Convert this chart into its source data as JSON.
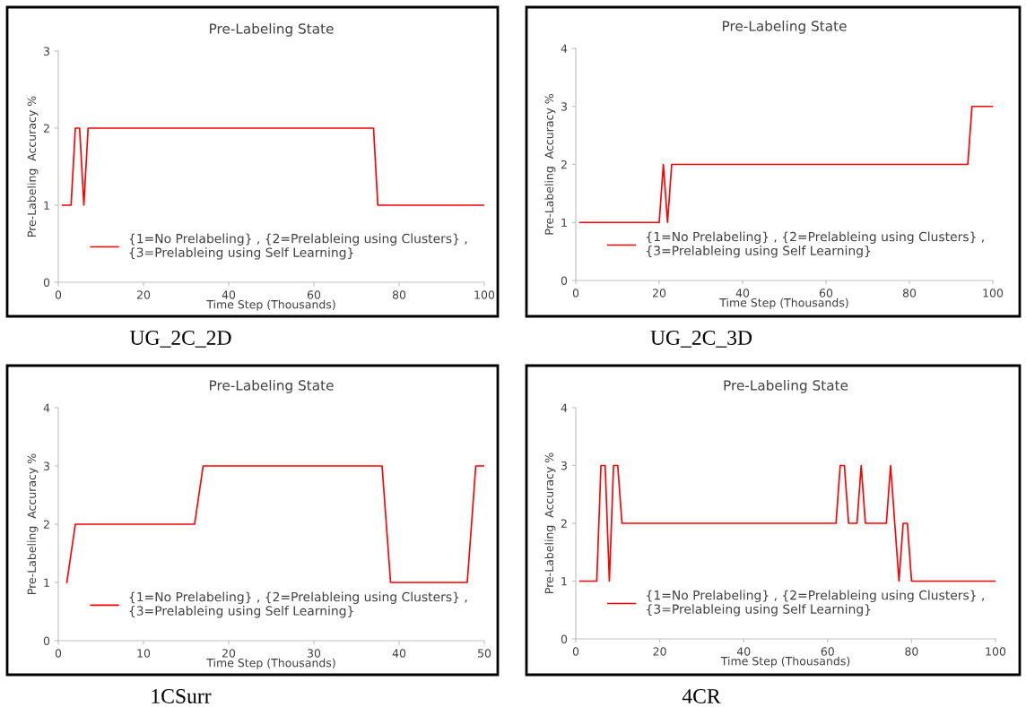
{
  "chart_data": [
    {
      "type": "line",
      "title": "Pre-Labeling State",
      "xlabel": "Time Step (Thousands)",
      "ylabel": "Pre-Labeling  Accuracy %",
      "annotations": [
        "UG_2C_2D"
      ],
      "xlim": [
        0,
        100
      ],
      "xticks": [
        0,
        20,
        40,
        60,
        80,
        100
      ],
      "ylim": [
        0,
        3
      ],
      "yticks": [
        0,
        1,
        2,
        3
      ],
      "grid": false,
      "legend": "bottom left",
      "marker": "none",
      "line_style": "solid",
      "series": [
        {
          "name": "{1=No Prelabeling} , {2=Prelableing using Clusters} ,\n{3=Prelableing using Self Learning}",
          "color": "#ff0000",
          "x": [
            1,
            3,
            4,
            5,
            6,
            7,
            74,
            75,
            100
          ],
          "values": [
            1,
            1,
            2,
            2,
            1,
            2,
            2,
            1,
            1
          ]
        }
      ]
    },
    {
      "type": "line",
      "title": "Pre-Labeling State",
      "xlabel": "Time Step (Thousands)",
      "ylabel": "Pre-Labeling  Accuracy %",
      "annotations": [
        "UG_2C_3D"
      ],
      "xlim": [
        0,
        100
      ],
      "xticks": [
        0,
        20,
        40,
        60,
        80,
        100
      ],
      "ylim": [
        0,
        4
      ],
      "yticks": [
        0,
        1,
        2,
        3,
        4
      ],
      "grid": false,
      "legend": "bottom left",
      "marker": "none",
      "line_style": "solid",
      "series": [
        {
          "name": "{1=No Prelabeling} , {2=Prelableing using Clusters} ,\n{3=Prelableing using Self Learning}",
          "color": "#ff0000",
          "x": [
            1,
            20,
            21,
            22,
            23,
            94,
            95,
            100
          ],
          "values": [
            1,
            1,
            2,
            1,
            2,
            2,
            3,
            3
          ]
        }
      ]
    },
    {
      "type": "line",
      "title": "Pre-Labeling State",
      "xlabel": "Time Step (Thousands)",
      "ylabel": "Pre-Labeling  Accuracy %",
      "annotations": [
        "1CSurr"
      ],
      "xlim": [
        0,
        50
      ],
      "xticks": [
        0,
        10,
        20,
        30,
        40,
        50
      ],
      "ylim": [
        0,
        4
      ],
      "yticks": [
        0,
        1,
        2,
        3,
        4
      ],
      "grid": false,
      "legend": "bottom left",
      "marker": "none",
      "line_style": "solid",
      "series": [
        {
          "name": "{1=No Prelabeling} , {2=Prelableing using Clusters} ,\n{3=Prelableing using Self Learning}",
          "color": "#ff0000",
          "x": [
            1,
            2,
            16,
            17,
            38,
            39,
            48,
            49,
            50
          ],
          "values": [
            1,
            2,
            2,
            3,
            3,
            1,
            1,
            3,
            3
          ]
        }
      ]
    },
    {
      "type": "line",
      "title": "Pre-Labeling State",
      "xlabel": "Time Step (Thousands)",
      "ylabel": "Pre-Labeling  Accuracy %",
      "annotations": [
        "4CR"
      ],
      "xlim": [
        0,
        100
      ],
      "xticks": [
        0,
        20,
        40,
        60,
        80,
        100
      ],
      "ylim": [
        0,
        4
      ],
      "yticks": [
        0,
        1,
        2,
        3,
        4
      ],
      "grid": false,
      "legend": "bottom left",
      "marker": "none",
      "line_style": "solid",
      "series": [
        {
          "name": "{1=No Prelabeling} , {2=Prelableing using Clusters} ,\n{3=Prelableing using Self Learning}",
          "color": "#ff0000",
          "x": [
            1,
            5,
            6,
            7,
            8,
            9,
            10,
            11,
            62,
            63,
            64,
            65,
            67,
            68,
            69,
            74,
            75,
            77,
            78,
            79,
            80,
            100
          ],
          "values": [
            1,
            1,
            3,
            3,
            1,
            3,
            3,
            2,
            2,
            3,
            3,
            2,
            2,
            3,
            2,
            2,
            3,
            1,
            2,
            2,
            1,
            1
          ]
        }
      ]
    }
  ]
}
